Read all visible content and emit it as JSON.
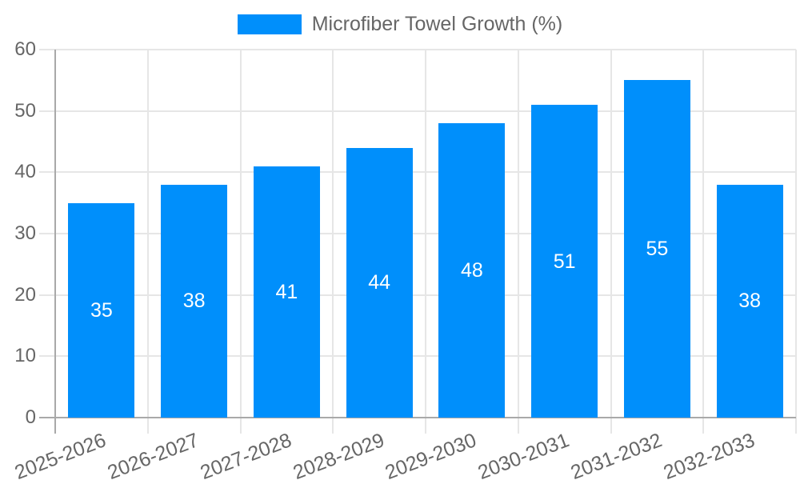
{
  "chart_data": {
    "type": "bar",
    "title": "",
    "series_name": "Microfiber Towel Growth (%)",
    "categories": [
      "2025-2026",
      "2026-2027",
      "2027-2028",
      "2028-2029",
      "2029-2030",
      "2030-2031",
      "2031-2032",
      "2032-2033"
    ],
    "values": [
      35,
      38,
      41,
      44,
      48,
      51,
      55,
      38
    ],
    "data_labels": [
      "35",
      "38",
      "41",
      "44",
      "48",
      "51",
      "55",
      "38"
    ],
    "ylabel": "",
    "xlabel": "",
    "ylim": [
      0,
      60
    ],
    "ytick_step": 10,
    "yticks": [
      "0",
      "10",
      "20",
      "30",
      "40",
      "50",
      "60"
    ],
    "grid": true,
    "legend_position": "top",
    "colors": {
      "bar": "#008FFB",
      "data_label": "#FFFFFF",
      "tick_label": "#666666",
      "legend_label": "#666666",
      "gridline": "#E6E6E6",
      "axis_line": "#A9A9A9",
      "background": "#FFFFFF"
    }
  }
}
